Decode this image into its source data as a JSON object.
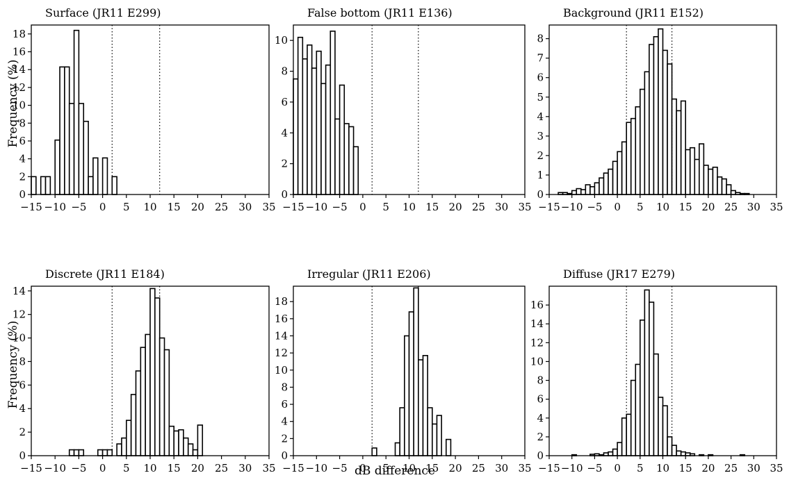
{
  "figure": {
    "ylabel": "Frequency (%)",
    "xlabel": "dB difference"
  },
  "chart_data": [
    {
      "type": "bar",
      "title": "Surface (JR11 E299)",
      "xlim": [
        -15,
        35
      ],
      "ylim": [
        0,
        19
      ],
      "xticks": [
        -15,
        -10,
        -5,
        0,
        5,
        10,
        15,
        20,
        25,
        30,
        35
      ],
      "yticks": [
        0,
        2,
        4,
        6,
        8,
        10,
        12,
        14,
        16,
        18
      ],
      "bin_width": 1,
      "bin_lefts": [
        -15,
        -14,
        -13,
        -12,
        -11,
        -10,
        -9,
        -8,
        -7,
        -6,
        -5,
        -4,
        -3,
        -2,
        -1,
        0,
        1,
        2
      ],
      "values": [
        2,
        0,
        2,
        2,
        0,
        6.1,
        14.3,
        14.3,
        10.2,
        18.4,
        10.2,
        8.2,
        2,
        4.1,
        0,
        4.1,
        0,
        2
      ],
      "thresholds": [
        2,
        12
      ]
    },
    {
      "type": "bar",
      "title": "False bottom (JR11 E136)",
      "xlim": [
        -15,
        35
      ],
      "ylim": [
        0,
        11
      ],
      "xticks": [
        -15,
        -10,
        -5,
        0,
        5,
        10,
        15,
        20,
        25,
        30,
        35
      ],
      "yticks": [
        0,
        2,
        4,
        6,
        8,
        10
      ],
      "bin_width": 1,
      "bin_lefts": [
        -15,
        -14,
        -13,
        -12,
        -11,
        -10,
        -9,
        -8,
        -7,
        -6,
        -5,
        -4,
        -3,
        -2
      ],
      "values": [
        7.5,
        10.2,
        8.8,
        9.7,
        8.2,
        9.3,
        7.2,
        8.4,
        10.6,
        4.9,
        7.1,
        4.6,
        4.4,
        3.1
      ],
      "thresholds": [
        2,
        12
      ]
    },
    {
      "type": "bar",
      "title": "Background (JR11 E152)",
      "xlim": [
        -15,
        35
      ],
      "ylim": [
        0,
        8.7
      ],
      "xticks": [
        -15,
        -10,
        -5,
        0,
        5,
        10,
        15,
        20,
        25,
        30,
        35
      ],
      "yticks": [
        0,
        1,
        2,
        3,
        4,
        5,
        6,
        7,
        8
      ],
      "bin_width": 1,
      "bin_lefts": [
        -13,
        -12,
        -11,
        -10,
        -9,
        -8,
        -7,
        -6,
        -5,
        -4,
        -3,
        -2,
        -1,
        0,
        1,
        2,
        3,
        4,
        5,
        6,
        7,
        8,
        9,
        10,
        11,
        12,
        13,
        14,
        15,
        16,
        17,
        18,
        19,
        20,
        21,
        22,
        23,
        24,
        25,
        26,
        27,
        28
      ],
      "values": [
        0.1,
        0.1,
        0.05,
        0.2,
        0.3,
        0.25,
        0.5,
        0.4,
        0.6,
        0.85,
        1.1,
        1.3,
        1.7,
        2.2,
        2.7,
        3.7,
        3.9,
        4.5,
        5.4,
        6.3,
        7.7,
        8.1,
        8.5,
        7.4,
        6.7,
        4.9,
        4.3,
        4.8,
        2.3,
        2.4,
        1.8,
        2.6,
        1.5,
        1.3,
        1.4,
        0.9,
        0.8,
        0.5,
        0.2,
        0.1,
        0.05,
        0.05
      ],
      "thresholds": [
        2,
        12
      ]
    },
    {
      "type": "bar",
      "title": "Discrete (JR11 E184)",
      "xlim": [
        -15,
        35
      ],
      "ylim": [
        0,
        14.4
      ],
      "xticks": [
        -15,
        -10,
        -5,
        0,
        5,
        10,
        15,
        20,
        25,
        30,
        35
      ],
      "yticks": [
        0,
        2,
        4,
        6,
        8,
        10,
        12,
        14
      ],
      "bin_width": 1,
      "bin_lefts": [
        -7,
        -6,
        -5,
        -4,
        -1,
        0,
        1,
        3,
        4,
        5,
        6,
        7,
        8,
        9,
        10,
        11,
        12,
        13,
        14,
        15,
        16,
        17,
        18,
        19,
        20
      ],
      "values": [
        0.5,
        0.5,
        0.5,
        0.0,
        0.5,
        0.5,
        0.5,
        1.0,
        1.5,
        3.0,
        5.2,
        7.2,
        9.2,
        10.3,
        14.2,
        13.4,
        10.0,
        9.0,
        2.5,
        2.1,
        2.2,
        1.5,
        1.0,
        0.5,
        2.6
      ],
      "thresholds": [
        2,
        12
      ]
    },
    {
      "type": "bar",
      "title": "Irregular (JR11 E206)",
      "xlim": [
        -15,
        35
      ],
      "ylim": [
        0,
        19.8
      ],
      "xticks": [
        -15,
        -10,
        -5,
        0,
        5,
        10,
        15,
        20,
        25,
        30,
        35
      ],
      "yticks": [
        0,
        2,
        4,
        6,
        8,
        10,
        12,
        14,
        16,
        18
      ],
      "bin_width": 1,
      "bin_lefts": [
        2,
        7,
        8,
        9,
        10,
        11,
        12,
        13,
        14,
        15,
        16,
        17,
        18
      ],
      "values": [
        0.9,
        1.5,
        5.6,
        14.0,
        16.8,
        19.6,
        11.2,
        11.7,
        5.6,
        3.7,
        4.7,
        0.0,
        1.9
      ],
      "thresholds": [
        2,
        12
      ]
    },
    {
      "type": "bar",
      "title": "Diffuse (JR17 E279)",
      "xlim": [
        -15,
        35
      ],
      "ylim": [
        0,
        18
      ],
      "xticks": [
        -15,
        -10,
        -5,
        0,
        5,
        10,
        15,
        20,
        25,
        30,
        35
      ],
      "yticks": [
        0,
        2,
        4,
        6,
        8,
        10,
        12,
        14,
        16
      ],
      "bin_width": 1,
      "bin_lefts": [
        -10,
        -6,
        -5,
        -4,
        -3,
        -2,
        -1,
        0,
        1,
        2,
        3,
        4,
        5,
        6,
        7,
        8,
        9,
        10,
        11,
        12,
        13,
        14,
        15,
        16,
        18,
        20,
        27
      ],
      "values": [
        0.1,
        0.15,
        0.2,
        0.1,
        0.3,
        0.4,
        0.7,
        1.4,
        4.0,
        4.4,
        8.0,
        9.7,
        14.4,
        17.6,
        16.3,
        10.8,
        6.2,
        5.3,
        2.0,
        1.1,
        0.5,
        0.4,
        0.3,
        0.2,
        0.1,
        0.1,
        0.1
      ],
      "thresholds": [
        2,
        12
      ]
    }
  ]
}
